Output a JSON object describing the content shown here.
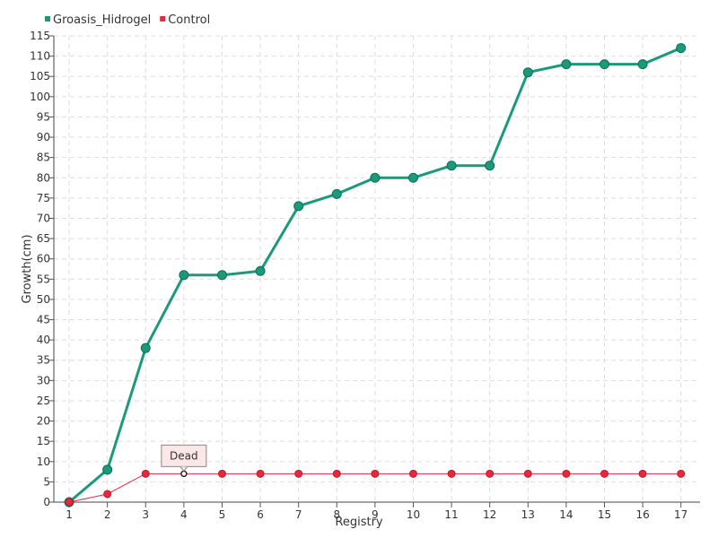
{
  "chart_data": {
    "type": "line",
    "xlabel": "Registry",
    "ylabel": "Growth(cm)",
    "x": [
      1,
      2,
      3,
      4,
      5,
      6,
      7,
      8,
      9,
      10,
      11,
      12,
      13,
      14,
      15,
      16,
      17
    ],
    "xlim": [
      0.6,
      17.5
    ],
    "ylim": [
      0,
      115
    ],
    "y_tick_step": 5,
    "grid": true,
    "legend_position": "top-left",
    "series": [
      {
        "name": "Groasis_Hidrogel",
        "color": "#1a9a7b",
        "values": [
          0,
          8,
          38,
          56,
          56,
          57,
          73,
          76,
          80,
          80,
          83,
          83,
          106,
          108,
          108,
          108,
          112
        ]
      },
      {
        "name": "Control",
        "color": "#e8273a",
        "values": [
          0,
          2,
          7,
          7,
          7,
          7,
          7,
          7,
          7,
          7,
          7,
          7,
          7,
          7,
          7,
          7,
          7
        ]
      }
    ],
    "annotations": [
      {
        "text": "Dead",
        "series": "Control",
        "x": 4,
        "y": 7
      }
    ]
  }
}
